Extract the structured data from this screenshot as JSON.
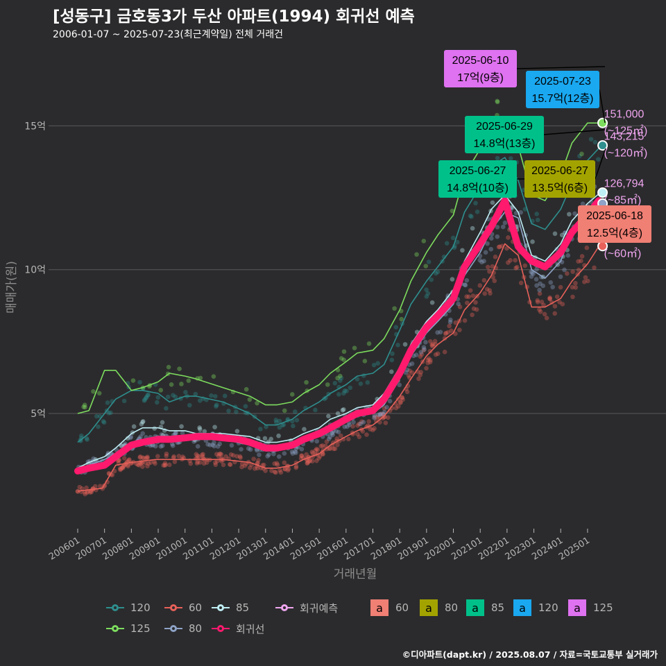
{
  "header": {
    "title": "[성동구] 금호동3가 두산 아파트(1994) 회귀선 예측",
    "subtitle": "2006-01-07 ~ 2025-07-23(최근계약일) 전체 거래건"
  },
  "footer": "©디아파트(dapt.kr) / 2025.08.07 / 자료=국토교통부 실거래가",
  "colors": {
    "background": "#2b2b2d",
    "grid": "#5a5a5a",
    "s60": "#e8615a",
    "s80": "#8ea3c7",
    "s85": "#bfeef5",
    "s120": "#2e8f8e",
    "s125": "#7ddd5e",
    "regression": "#ff1a6e",
    "prediction": "#f0a6ef",
    "box60": "#f07f74",
    "box80": "#a3a300",
    "box85": "#00c08a",
    "box120": "#1aa8f0",
    "box125": "#df72f0"
  },
  "chart_data": {
    "type": "line",
    "xlabel": "거래년월",
    "ylabel": "매매가(원)",
    "yticks": [
      {
        "value": 5,
        "label": "5억"
      },
      {
        "value": 10,
        "label": "10억"
      },
      {
        "value": 15,
        "label": "15억"
      }
    ],
    "xticks": [
      "200601",
      "200701",
      "200801",
      "200901",
      "201001",
      "201101",
      "201201",
      "201301",
      "201401",
      "201501",
      "201601",
      "201701",
      "201801",
      "201901",
      "202001",
      "202101",
      "202201",
      "202301",
      "202401",
      "202501"
    ],
    "xlim": [
      "2006-01",
      "2025-12"
    ],
    "ylim": [
      0,
      17.8
    ],
    "grid": true,
    "series": [
      {
        "name": "60",
        "key": "s60",
        "points": [
          [
            "2006-01",
            2.3
          ],
          [
            "2006-12",
            2.4
          ],
          [
            "2007-06",
            3.2
          ],
          [
            "2008-01",
            3.3
          ],
          [
            "2008-12",
            3.4
          ],
          [
            "2009-06",
            3.4
          ],
          [
            "2010-06",
            3.4
          ],
          [
            "2011-06",
            3.4
          ],
          [
            "2012-06",
            3.3
          ],
          [
            "2013-01",
            3.1
          ],
          [
            "2013-06",
            3.1
          ],
          [
            "2014-01",
            3.2
          ],
          [
            "2014-06",
            3.4
          ],
          [
            "2015-01",
            3.6
          ],
          [
            "2015-06",
            3.9
          ],
          [
            "2016-01",
            4.2
          ],
          [
            "2016-06",
            4.4
          ],
          [
            "2017-01",
            4.6
          ],
          [
            "2017-06",
            4.9
          ],
          [
            "2018-01",
            5.6
          ],
          [
            "2018-06",
            6.2
          ],
          [
            "2019-01",
            7.0
          ],
          [
            "2019-06",
            7.4
          ],
          [
            "2020-01",
            7.8
          ],
          [
            "2020-06",
            8.6
          ],
          [
            "2021-01",
            9.2
          ],
          [
            "2021-06",
            9.8
          ],
          [
            "2021-12",
            10.9
          ],
          [
            "2022-06",
            10.5
          ],
          [
            "2022-12",
            8.7
          ],
          [
            "2023-06",
            8.7
          ],
          [
            "2024-01",
            9.0
          ],
          [
            "2024-06",
            9.6
          ],
          [
            "2025-01",
            10.2
          ],
          [
            "2025-06",
            10.8
          ]
        ]
      },
      {
        "name": "80",
        "key": "s80",
        "points": [
          [
            "2006-01",
            3.0
          ],
          [
            "2006-06",
            3.2
          ],
          [
            "2007-01",
            3.4
          ],
          [
            "2007-06",
            3.6
          ],
          [
            "2008-01",
            4.0
          ],
          [
            "2008-06",
            4.1
          ],
          [
            "2009-01",
            4.0
          ],
          [
            "2009-06",
            4.1
          ],
          [
            "2010-06",
            4.1
          ],
          [
            "2011-06",
            4.1
          ],
          [
            "2012-06",
            3.9
          ],
          [
            "2013-01",
            3.7
          ],
          [
            "2013-06",
            3.7
          ],
          [
            "2014-01",
            3.8
          ],
          [
            "2014-06",
            4.0
          ],
          [
            "2015-01",
            4.2
          ],
          [
            "2015-06",
            4.4
          ],
          [
            "2016-01",
            4.7
          ],
          [
            "2016-06",
            4.9
          ],
          [
            "2017-01",
            5.0
          ],
          [
            "2017-06",
            5.3
          ],
          [
            "2018-01",
            6.2
          ],
          [
            "2018-06",
            7.0
          ],
          [
            "2019-01",
            7.8
          ],
          [
            "2019-06",
            8.2
          ],
          [
            "2020-01",
            8.8
          ],
          [
            "2020-06",
            9.8
          ],
          [
            "2021-01",
            10.6
          ],
          [
            "2021-06",
            11.4
          ],
          [
            "2021-12",
            12.0
          ],
          [
            "2022-06",
            11.8
          ],
          [
            "2022-12",
            10.0
          ],
          [
            "2023-06",
            9.7
          ],
          [
            "2024-01",
            10.3
          ],
          [
            "2024-06",
            11.3
          ],
          [
            "2025-01",
            12.0
          ],
          [
            "2025-06",
            12.4
          ]
        ]
      },
      {
        "name": "85",
        "key": "s85",
        "points": [
          [
            "2006-01",
            3.1
          ],
          [
            "2006-06",
            3.3
          ],
          [
            "2007-01",
            3.5
          ],
          [
            "2007-06",
            3.8
          ],
          [
            "2008-01",
            4.3
          ],
          [
            "2008-06",
            4.5
          ],
          [
            "2009-01",
            4.5
          ],
          [
            "2009-06",
            4.4
          ],
          [
            "2010-01",
            4.4
          ],
          [
            "2010-06",
            4.3
          ],
          [
            "2011-06",
            4.3
          ],
          [
            "2012-06",
            4.2
          ],
          [
            "2013-01",
            4.0
          ],
          [
            "2013-06",
            4.0
          ],
          [
            "2014-01",
            4.1
          ],
          [
            "2014-06",
            4.3
          ],
          [
            "2015-01",
            4.5
          ],
          [
            "2015-06",
            4.8
          ],
          [
            "2016-01",
            5.0
          ],
          [
            "2016-06",
            5.2
          ],
          [
            "2017-01",
            5.3
          ],
          [
            "2017-06",
            5.7
          ],
          [
            "2018-01",
            6.6
          ],
          [
            "2018-06",
            7.4
          ],
          [
            "2019-01",
            8.2
          ],
          [
            "2019-06",
            8.6
          ],
          [
            "2020-01",
            9.3
          ],
          [
            "2020-06",
            10.3
          ],
          [
            "2021-01",
            11.3
          ],
          [
            "2021-06",
            12.1
          ],
          [
            "2021-12",
            12.6
          ],
          [
            "2022-06",
            12.0
          ],
          [
            "2022-12",
            10.5
          ],
          [
            "2023-06",
            10.3
          ],
          [
            "2024-01",
            10.9
          ],
          [
            "2024-06",
            11.7
          ],
          [
            "2025-01",
            12.3
          ],
          [
            "2025-07",
            12.7
          ]
        ]
      },
      {
        "name": "120",
        "key": "s120",
        "points": [
          [
            "2006-01",
            4.0
          ],
          [
            "2006-06",
            4.3
          ],
          [
            "2007-01",
            5.0
          ],
          [
            "2007-06",
            5.5
          ],
          [
            "2008-01",
            5.8
          ],
          [
            "2008-06",
            5.8
          ],
          [
            "2009-01",
            5.7
          ],
          [
            "2009-06",
            5.4
          ],
          [
            "2010-01",
            5.6
          ],
          [
            "2010-06",
            5.6
          ],
          [
            "2011-06",
            5.4
          ],
          [
            "2012-06",
            5.0
          ],
          [
            "2013-01",
            4.6
          ],
          [
            "2013-06",
            4.6
          ],
          [
            "2014-01",
            4.8
          ],
          [
            "2014-06",
            5.1
          ],
          [
            "2015-01",
            5.4
          ],
          [
            "2015-06",
            5.7
          ],
          [
            "2016-01",
            6.0
          ],
          [
            "2016-06",
            6.3
          ],
          [
            "2017-01",
            6.4
          ],
          [
            "2017-06",
            6.7
          ],
          [
            "2018-01",
            7.9
          ],
          [
            "2018-06",
            8.8
          ],
          [
            "2019-01",
            9.6
          ],
          [
            "2019-06",
            10.1
          ],
          [
            "2020-01",
            10.8
          ],
          [
            "2020-06",
            12.0
          ],
          [
            "2021-01",
            12.9
          ],
          [
            "2021-06",
            13.6
          ],
          [
            "2021-12",
            13.9
          ],
          [
            "2022-06",
            13.1
          ],
          [
            "2022-12",
            11.6
          ],
          [
            "2023-06",
            11.4
          ],
          [
            "2024-01",
            12.1
          ],
          [
            "2024-06",
            13.0
          ],
          [
            "2025-01",
            13.8
          ],
          [
            "2025-07",
            14.3
          ]
        ]
      },
      {
        "name": "125",
        "key": "s125",
        "points": [
          [
            "2006-01",
            5.0
          ],
          [
            "2006-06",
            5.1
          ],
          [
            "2007-01",
            6.5
          ],
          [
            "2007-06",
            6.5
          ],
          [
            "2008-01",
            5.8
          ],
          [
            "2008-06",
            5.9
          ],
          [
            "2009-01",
            6.1
          ],
          [
            "2009-06",
            6.4
          ],
          [
            "2010-01",
            6.3
          ],
          [
            "2010-06",
            6.2
          ],
          [
            "2011-06",
            5.9
          ],
          [
            "2012-06",
            5.6
          ],
          [
            "2013-01",
            5.3
          ],
          [
            "2013-06",
            5.3
          ],
          [
            "2014-01",
            5.4
          ],
          [
            "2014-06",
            5.7
          ],
          [
            "2015-01",
            6.0
          ],
          [
            "2015-06",
            6.4
          ],
          [
            "2016-01",
            6.8
          ],
          [
            "2016-06",
            7.1
          ],
          [
            "2017-01",
            7.2
          ],
          [
            "2017-06",
            7.6
          ],
          [
            "2018-01",
            8.6
          ],
          [
            "2018-06",
            9.6
          ],
          [
            "2019-01",
            10.6
          ],
          [
            "2019-06",
            11.2
          ],
          [
            "2020-01",
            11.9
          ],
          [
            "2020-06",
            13.3
          ],
          [
            "2021-01",
            14.2
          ],
          [
            "2021-06",
            14.9
          ],
          [
            "2021-12",
            15.2
          ],
          [
            "2022-06",
            14.3
          ],
          [
            "2022-12",
            12.6
          ],
          [
            "2023-06",
            12.4
          ],
          [
            "2024-01",
            13.3
          ],
          [
            "2024-06",
            14.4
          ],
          [
            "2025-01",
            15.1
          ],
          [
            "2025-07",
            15.1
          ]
        ]
      },
      {
        "name": "회귀선",
        "key": "regression",
        "points": [
          [
            "2006-01",
            3.0
          ],
          [
            "2006-06",
            3.1
          ],
          [
            "2007-01",
            3.2
          ],
          [
            "2007-06",
            3.5
          ],
          [
            "2008-01",
            3.9
          ],
          [
            "2008-06",
            4.0
          ],
          [
            "2009-01",
            4.1
          ],
          [
            "2009-06",
            4.1
          ],
          [
            "2010-01",
            4.15
          ],
          [
            "2010-06",
            4.2
          ],
          [
            "2011-01",
            4.2
          ],
          [
            "2011-06",
            4.15
          ],
          [
            "2012-01",
            4.1
          ],
          [
            "2012-06",
            4.0
          ],
          [
            "2013-01",
            3.8
          ],
          [
            "2013-06",
            3.8
          ],
          [
            "2014-01",
            3.9
          ],
          [
            "2014-06",
            4.1
          ],
          [
            "2015-01",
            4.3
          ],
          [
            "2015-06",
            4.5
          ],
          [
            "2016-01",
            4.8
          ],
          [
            "2016-06",
            5.0
          ],
          [
            "2017-01",
            5.1
          ],
          [
            "2017-06",
            5.5
          ],
          [
            "2018-01",
            6.4
          ],
          [
            "2018-06",
            7.2
          ],
          [
            "2019-01",
            8.0
          ],
          [
            "2019-06",
            8.4
          ],
          [
            "2020-01",
            9.0
          ],
          [
            "2020-06",
            10.1
          ],
          [
            "2021-01",
            10.9
          ],
          [
            "2021-06",
            11.5
          ],
          [
            "2021-12",
            12.4
          ],
          [
            "2022-03",
            11.6
          ],
          [
            "2022-06",
            10.8
          ],
          [
            "2022-12",
            10.3
          ],
          [
            "2023-06",
            10.1
          ],
          [
            "2024-01",
            10.6
          ],
          [
            "2024-06",
            11.3
          ],
          [
            "2025-01",
            11.9
          ],
          [
            "2025-06",
            12.4
          ]
        ]
      }
    ],
    "prediction_points": [
      {
        "size": "125",
        "value": 15.1,
        "label": "151,000",
        "area": "(~125㎡)",
        "date": "2025-07"
      },
      {
        "size": "120",
        "value": 14.32,
        "label": "143,215",
        "area": "(~120㎡)",
        "date": "2025-07"
      },
      {
        "size": "85",
        "value": 12.68,
        "label": "126,794",
        "area": "(~85㎡)",
        "date": "2025-07"
      },
      {
        "size": "80",
        "value": 12.3,
        "label": "",
        "area": "",
        "date": "2025-07"
      },
      {
        "size": "60",
        "value": 10.82,
        "label": "108,241",
        "area": "(~60㎡)",
        "date": "2025-07"
      }
    ],
    "annotations": [
      {
        "size": "125",
        "date": "2025-06-10",
        "text": "17억(9층)",
        "value": 17.0
      },
      {
        "size": "120",
        "date": "2025-07-23",
        "text": "15.7억(12층)",
        "value": 15.7
      },
      {
        "size": "85",
        "date": "2025-06-29",
        "text": "14.8억(13층)",
        "value": 14.8
      },
      {
        "size": "85",
        "date": "2025-06-27",
        "text": "14.8억(10층)",
        "value": 14.8
      },
      {
        "size": "80",
        "date": "2025-06-27",
        "text": "13.5억(6층)",
        "value": 13.5
      },
      {
        "size": "60",
        "date": "2025-06-18",
        "text": "12.5억(4층)",
        "value": 12.5
      }
    ]
  },
  "legend": {
    "line_items": [
      {
        "label": "120",
        "key": "s120"
      },
      {
        "label": "60",
        "key": "s60"
      },
      {
        "label": "85",
        "key": "s85"
      },
      {
        "label": "회귀예측",
        "key": "prediction"
      },
      {
        "label": "125",
        "key": "s125"
      },
      {
        "label": "80",
        "key": "s80"
      },
      {
        "label": "회귀선",
        "key": "regression"
      }
    ],
    "box_letter": "a",
    "box_items": [
      {
        "label": "60",
        "key": "box60"
      },
      {
        "label": "80",
        "key": "box80"
      },
      {
        "label": "85",
        "key": "box85"
      },
      {
        "label": "120",
        "key": "box120"
      },
      {
        "label": "125",
        "key": "box125"
      }
    ]
  }
}
